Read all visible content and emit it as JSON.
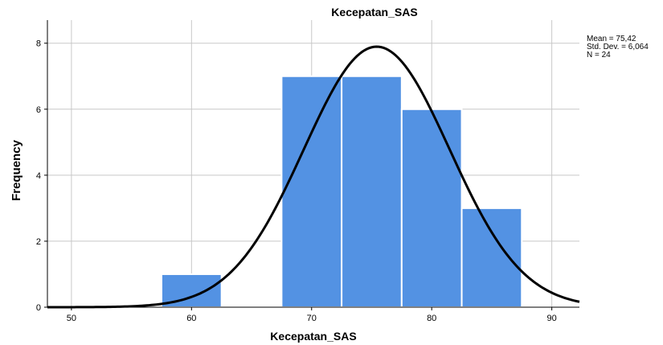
{
  "chart_data": {
    "type": "bar",
    "title": "Kecepatan_SAS",
    "xlabel": "Kecepatan_SAS",
    "ylabel": "Frequency",
    "xlim": [
      48,
      92.3
    ],
    "ylim": [
      0,
      8.7
    ],
    "x_ticks": [
      "50",
      "60",
      "70",
      "80",
      "90"
    ],
    "y_ticks": [
      "0",
      "2",
      "4",
      "6",
      "8"
    ],
    "bins": [
      {
        "from": 57.5,
        "to": 62.5,
        "value": 1
      },
      {
        "from": 67.5,
        "to": 72.5,
        "value": 7
      },
      {
        "from": 72.5,
        "to": 77.5,
        "value": 7
      },
      {
        "from": 77.5,
        "to": 82.5,
        "value": 6
      },
      {
        "from": 82.5,
        "to": 87.5,
        "value": 3
      }
    ],
    "normal_curve": {
      "mean": 75.42,
      "std": 6.064,
      "n": 24,
      "bin_width": 5
    },
    "stats": {
      "mean": "Mean = 75,42",
      "std": "Std. Dev. = 6,064",
      "n": "N = 24"
    },
    "grid": true,
    "bar_color": "#5392e3",
    "curve_color": "#000000"
  }
}
